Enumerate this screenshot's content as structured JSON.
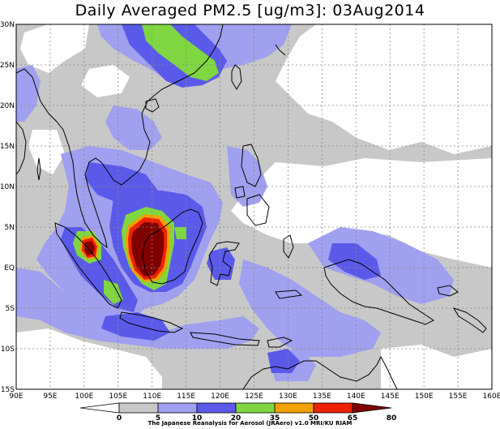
{
  "title": "Daily Averaged PM2.5 [ug/m3]: 03Aug2014",
  "credit": "The Japanese Reanalysis for Aerosol (JRAero) v1.0 MRI/KU RIAM",
  "map": {
    "lon_range": [
      90,
      160
    ],
    "lat_range": [
      -15,
      30
    ],
    "lon_ticks": [
      "90E",
      "95E",
      "100E",
      "105E",
      "110E",
      "115E",
      "120E",
      "125E",
      "130E",
      "135E",
      "140E",
      "145E",
      "150E",
      "155E",
      "160E"
    ],
    "lat_ticks": [
      "30N",
      "25N",
      "20N",
      "15N",
      "10N",
      "5N",
      "EQ",
      "5S",
      "10S",
      "15S"
    ]
  },
  "legend": {
    "labels": [
      "0",
      "5",
      "10",
      "20",
      "35",
      "50",
      "65",
      "80"
    ],
    "colors": [
      "#ffffff",
      "#c8c8c8",
      "#a0a0f0",
      "#5a5aea",
      "#80d640",
      "#f0a000",
      "#ee2000",
      "#800000"
    ]
  },
  "colors": {
    "level_5": "#c8c8c8",
    "level_10": "#a0a0f0",
    "level_20": "#5a5aea",
    "level_35": "#80d640",
    "level_50": "#f0a000",
    "level_65": "#ee2000",
    "level_80": "#800000",
    "coast": "#000000"
  }
}
